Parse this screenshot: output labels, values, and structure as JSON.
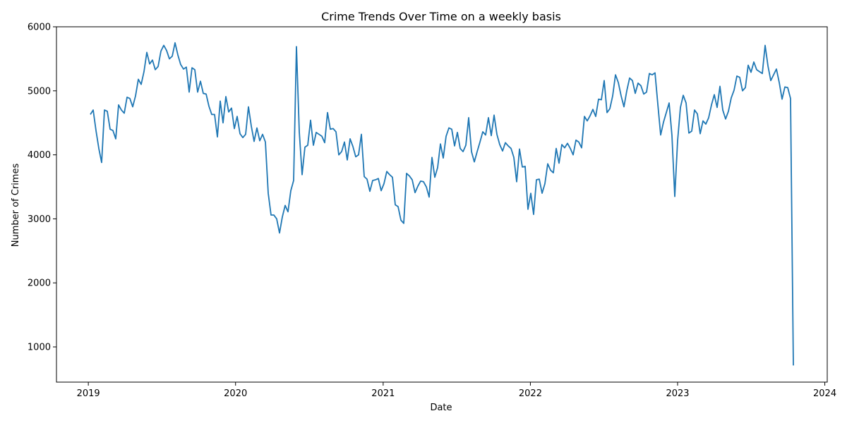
{
  "chart_data": {
    "type": "line",
    "title": "Crime Trends Over Time  on a weekly basis",
    "xlabel": "Date",
    "ylabel": "Number of Crimes",
    "xlim": [
      "2018-10-14",
      "2024-01-07"
    ],
    "ylim": [
      450,
      6000
    ],
    "x_ticks": [
      {
        "date": "2019-01-01",
        "label": "2019"
      },
      {
        "date": "2020-01-01",
        "label": "2020"
      },
      {
        "date": "2021-01-01",
        "label": "2021"
      },
      {
        "date": "2022-01-01",
        "label": "2022"
      },
      {
        "date": "2023-01-01",
        "label": "2023"
      },
      {
        "date": "2024-01-01",
        "label": "2024"
      }
    ],
    "y_ticks": [
      1000,
      2000,
      3000,
      4000,
      5000,
      6000
    ],
    "grid": false,
    "legend": "none",
    "line_color": "#1f77b4",
    "series": [
      {
        "x_start": "2019-01-06",
        "x_step_days": 7,
        "values": [
          4630,
          4700,
          4380,
          4100,
          3880,
          4700,
          4680,
          4400,
          4380,
          4250,
          4780,
          4700,
          4650,
          4900,
          4880,
          4750,
          4920,
          5180,
          5100,
          5300,
          5600,
          5420,
          5480,
          5330,
          5380,
          5620,
          5710,
          5630,
          5500,
          5540,
          5750,
          5560,
          5410,
          5340,
          5370,
          4980,
          5360,
          5330,
          4980,
          5150,
          4960,
          4950,
          4760,
          4630,
          4630,
          4280,
          4840,
          4500,
          4910,
          4670,
          4730,
          4410,
          4600,
          4330,
          4270,
          4320,
          4750,
          4450,
          4210,
          4420,
          4220,
          4320,
          4200,
          3400,
          3060,
          3060,
          3000,
          2780,
          3030,
          3210,
          3110,
          3440,
          3600,
          5690,
          4360,
          3690,
          4120,
          4150,
          4540,
          4150,
          4350,
          4320,
          4290,
          4190,
          4660,
          4400,
          4410,
          4360,
          4000,
          4050,
          4200,
          3920,
          4250,
          4130,
          3970,
          4000,
          4320,
          3660,
          3620,
          3430,
          3600,
          3610,
          3630,
          3440,
          3550,
          3740,
          3690,
          3650,
          3220,
          3190,
          2980,
          2930,
          3710,
          3670,
          3610,
          3410,
          3510,
          3590,
          3580,
          3500,
          3340,
          3960,
          3650,
          3800,
          4170,
          3950,
          4290,
          4420,
          4400,
          4140,
          4350,
          4100,
          4050,
          4150,
          4580,
          4050,
          3890,
          4050,
          4200,
          4360,
          4310,
          4580,
          4300,
          4620,
          4320,
          4160,
          4060,
          4190,
          4140,
          4100,
          3960,
          3580,
          4090,
          3810,
          3820,
          3150,
          3400,
          3070,
          3610,
          3620,
          3400,
          3550,
          3860,
          3760,
          3720,
          4100,
          3870,
          4160,
          4110,
          4180,
          4100,
          4000,
          4230,
          4200,
          4110,
          4600,
          4530,
          4610,
          4710,
          4600,
          4870,
          4860,
          5160,
          4660,
          4720,
          4920,
          5250,
          5130,
          4920,
          4750,
          5000,
          5200,
          5160,
          4960,
          5120,
          5080,
          4950,
          4980,
          5270,
          5250,
          5280,
          4790,
          4310,
          4510,
          4660,
          4810,
          4300,
          3350,
          4220,
          4740,
          4930,
          4810,
          4340,
          4370,
          4700,
          4640,
          4330,
          4530,
          4480,
          4580,
          4780,
          4940,
          4740,
          5070,
          4700,
          4560,
          4680,
          4890,
          5010,
          5230,
          5210,
          5000,
          5050,
          5400,
          5290,
          5450,
          5330,
          5300,
          5270,
          5710,
          5390,
          5160,
          5250,
          5340,
          5130,
          4870,
          5060,
          5050,
          4880,
          710
        ]
      }
    ]
  }
}
